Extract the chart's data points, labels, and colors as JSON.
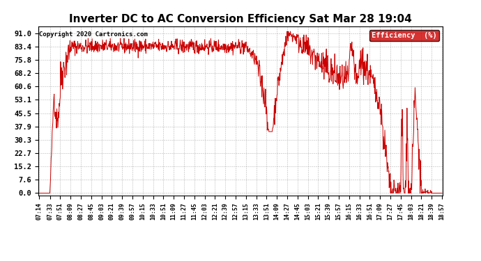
{
  "title": "Inverter DC to AC Conversion Efficiency Sat Mar 28 19:04",
  "copyright": "Copyright 2020 Cartronics.com",
  "legend_label": "Efficiency  (%)",
  "legend_bg": "#cc0000",
  "legend_text_color": "#ffffff",
  "line_color": "#cc0000",
  "bg_color": "#ffffff",
  "plot_bg_color": "#ffffff",
  "grid_color": "#999999",
  "title_fontsize": 11,
  "yticks": [
    0.0,
    7.6,
    15.2,
    22.7,
    30.3,
    37.9,
    45.5,
    53.1,
    60.6,
    68.2,
    75.8,
    83.4,
    91.0
  ],
  "ylim": [
    -1.5,
    95.0
  ],
  "xtick_labels": [
    "07:14",
    "07:33",
    "07:51",
    "08:09",
    "08:27",
    "08:45",
    "09:03",
    "09:21",
    "09:39",
    "09:57",
    "10:15",
    "10:33",
    "10:51",
    "11:09",
    "11:27",
    "11:45",
    "12:03",
    "12:21",
    "12:39",
    "12:57",
    "13:15",
    "13:33",
    "13:51",
    "14:09",
    "14:27",
    "14:45",
    "15:03",
    "15:21",
    "15:39",
    "15:57",
    "16:15",
    "16:33",
    "16:51",
    "17:09",
    "17:27",
    "17:45",
    "18:03",
    "18:21",
    "18:39",
    "18:57"
  ]
}
